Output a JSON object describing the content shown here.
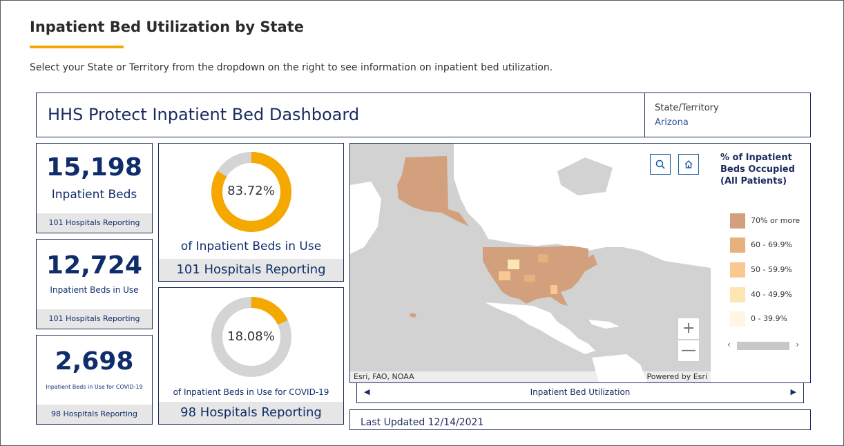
{
  "page": {
    "title": "Inpatient Bed Utilization by State",
    "intro": "Select your State or Territory from the dropdown on the right to see information on inpatient bed utilization."
  },
  "dashboard": {
    "title": "HHS Protect Inpatient Bed Dashboard",
    "state_label": "State/Territory",
    "state_value": "Arizona"
  },
  "stats": [
    {
      "value": "15,198",
      "label": "Inpatient Beds",
      "footer": "101 Hospitals Reporting"
    },
    {
      "value": "12,724",
      "label": "Inpatient Beds in Use",
      "footer": "101 Hospitals Reporting"
    },
    {
      "value": "2,698",
      "label": "Inpatient Beds in Use for COVID-19",
      "footer": "98 Hospitals Reporting"
    }
  ],
  "gauges": [
    {
      "value_text": "83.72%",
      "fraction": 0.8372,
      "caption": "of Inpatient Beds in Use",
      "footer": "101 Hospitals Reporting"
    },
    {
      "value_text": "18.08%",
      "fraction": 0.1808,
      "caption": "of Inpatient Beds in Use for COVID-19",
      "footer": "98 Hospitals Reporting"
    }
  ],
  "colors": {
    "navy": "#0f2d6b",
    "accent": "#f5a800",
    "gauge_track": "#d4d4d4",
    "map_background": "#d2d2d2",
    "land": "#ffffff",
    "state_fill": "#d2a07c"
  },
  "map": {
    "attribution_left": "Esri, FAO, NOAA",
    "attribution_right": "Powered by Esri",
    "search_icon": "search-icon",
    "home_icon": "home-icon",
    "zoom_in": "+",
    "zoom_out": "—",
    "legend": {
      "title": "% of Inpatient Beds Occupied (All Patients)",
      "items": [
        {
          "label": "70% or more",
          "color": "#d2a07c"
        },
        {
          "label": "60 - 69.9%",
          "color": "#e8b07c"
        },
        {
          "label": "50 - 59.9%",
          "color": "#f8c890"
        },
        {
          "label": "40 - 49.9%",
          "color": "#fde6b4"
        },
        {
          "label": "0 - 39.9%",
          "color": "#fef8e2"
        }
      ]
    }
  },
  "nav": {
    "label": "Inpatient Bed Utilization",
    "prev": "◀",
    "next": "▶"
  },
  "footer": {
    "last_updated": "Last Updated 12/14/2021"
  }
}
